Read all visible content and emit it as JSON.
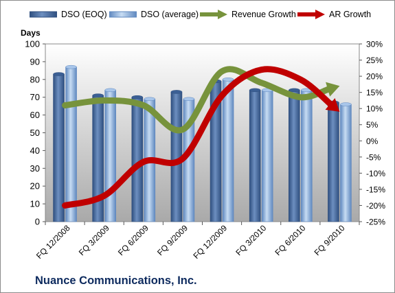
{
  "footer": {
    "company": "Nuance Communications, Inc."
  },
  "colors": {
    "bar_eoq": "#4a6fa5",
    "bar_avg": "#8eb4e3",
    "revenue_growth": "#77933c",
    "ar_growth": "#c00000",
    "plot_top": "#ffffff",
    "plot_bottom": "#a9a9a9"
  },
  "chart_data": {
    "type": "bar",
    "title": "",
    "xlabel": "",
    "ylabel": "Days",
    "ylim": [
      0,
      100
    ],
    "y2lim": [
      -25,
      30
    ],
    "yticks": [
      "0",
      "10",
      "20",
      "30",
      "40",
      "50",
      "60",
      "70",
      "80",
      "90",
      "100"
    ],
    "y2ticks": [
      "-25%",
      "-20%",
      "-15%",
      "-10%",
      "-5%",
      "0%",
      "5%",
      "10%",
      "15%",
      "20%",
      "25%",
      "30%"
    ],
    "legend_position": "top",
    "grid": false,
    "categories": [
      "FQ 12/2008",
      "FQ 3/2009",
      "FQ 6/2009",
      "FQ 9/2009",
      "FQ 12/2009",
      "FQ 3/2010",
      "FQ 6/2010",
      "FQ 9/2010"
    ],
    "series": [
      {
        "name": "DSO (EOQ)",
        "type": "bar",
        "axis": "left",
        "values": [
          83,
          71,
          70,
          73,
          79,
          74,
          74,
          67
        ]
      },
      {
        "name": "DSO (average)",
        "type": "bar",
        "axis": "left",
        "values": [
          87,
          74,
          69,
          69,
          80,
          74,
          74,
          66
        ]
      },
      {
        "name": "Revenue Growth",
        "type": "arrow-line",
        "axis": "right",
        "values": [
          11,
          12.5,
          11,
          3.5,
          21.5,
          18,
          13.5,
          17
        ]
      },
      {
        "name": "AR Growth",
        "type": "arrow-line",
        "axis": "right",
        "values": [
          -20,
          -17,
          -6.5,
          -5.5,
          14,
          22,
          19,
          9
        ]
      }
    ]
  }
}
